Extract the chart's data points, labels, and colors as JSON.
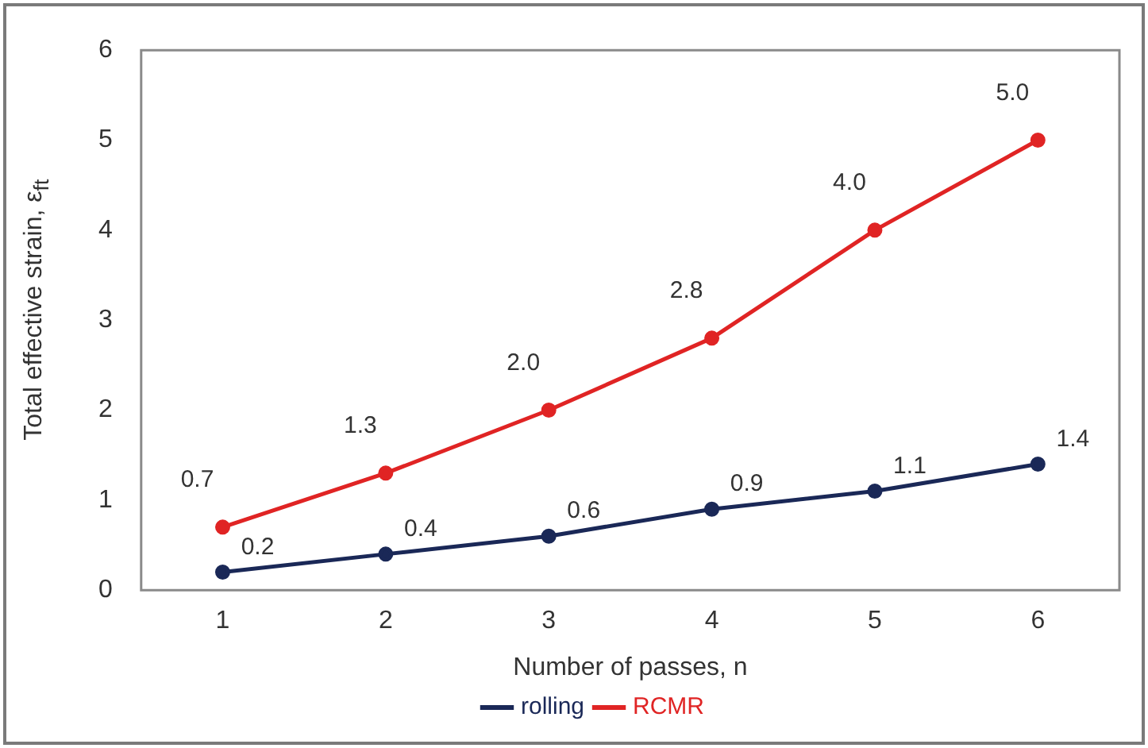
{
  "chart_data": {
    "type": "line",
    "xlabel": "Number of passes, n",
    "ylabel": "Total effective strain, ε$_{ft}$",
    "categories": [
      "1",
      "2",
      "3",
      "4",
      "5",
      "6"
    ],
    "series": [
      {
        "name": "rolling",
        "color": "#1a2857",
        "values": [
          0.2,
          0.4,
          0.6,
          0.9,
          1.1,
          1.4
        ],
        "value_labels": [
          "0.2",
          "0.4",
          "0.6",
          "0.9",
          "1.1",
          "1.4"
        ]
      },
      {
        "name": "RCMR",
        "color": "#e02424",
        "values": [
          0.7,
          1.3,
          2.0,
          2.8,
          4.0,
          5.0
        ],
        "value_labels": [
          "0.7",
          "1.3",
          "2.0",
          "2.8",
          "4.0",
          "5.0"
        ]
      }
    ],
    "ylim": [
      0,
      6
    ],
    "yticks": [
      0,
      1,
      2,
      3,
      4,
      5,
      6
    ],
    "grid": false,
    "legend": "bottom",
    "marker": "circle",
    "line_style": "solid"
  }
}
